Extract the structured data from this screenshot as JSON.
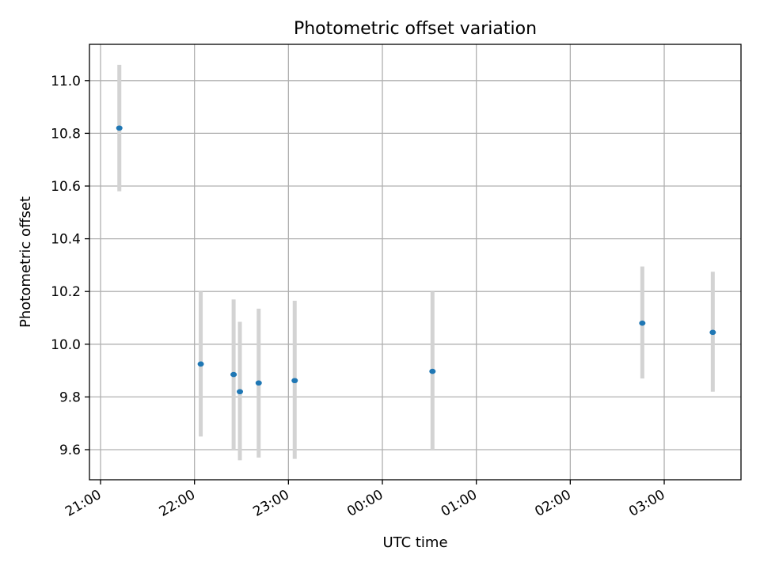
{
  "chart_data": {
    "type": "scatter",
    "title": "Photometric offset variation",
    "xlabel": "UTC time",
    "ylabel": "Photometric offset",
    "x_ticks": [
      "21:00",
      "22:00",
      "23:00",
      "00:00",
      "01:00",
      "02:00",
      "03:00"
    ],
    "y_ticks": [
      "9.6",
      "9.8",
      "10.0",
      "10.2",
      "10.4",
      "10.6",
      "10.8",
      "11.0"
    ],
    "grid": true,
    "colors": {
      "point": "#1f77b4",
      "errorbar": "#d3d3d3",
      "grid": "#b0b0b0"
    },
    "series": [
      {
        "points": [
          {
            "x": "21:12",
            "y": 10.82,
            "ylo": 10.58,
            "yhi": 11.06
          },
          {
            "x": "22:04",
            "y": 9.925,
            "ylo": 9.65,
            "yhi": 10.2
          },
          {
            "x": "22:25",
            "y": 9.885,
            "ylo": 9.6,
            "yhi": 10.17
          },
          {
            "x": "22:29",
            "y": 9.82,
            "ylo": 9.56,
            "yhi": 10.085
          },
          {
            "x": "22:41",
            "y": 9.853,
            "ylo": 9.57,
            "yhi": 10.135
          },
          {
            "x": "23:04",
            "y": 9.862,
            "ylo": 9.565,
            "yhi": 10.165
          },
          {
            "x": "00:32",
            "y": 9.897,
            "ylo": 9.6,
            "yhi": 10.2
          },
          {
            "x": "02:46",
            "y": 10.08,
            "ylo": 9.87,
            "yhi": 10.295
          },
          {
            "x": "03:31",
            "y": 10.045,
            "ylo": 9.82,
            "yhi": 10.275
          }
        ]
      }
    ]
  }
}
